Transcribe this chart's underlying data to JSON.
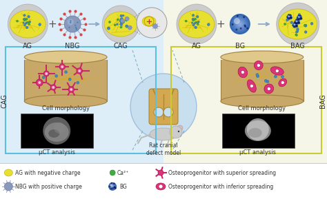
{
  "left_bg": "#ddeef8",
  "right_bg": "#f5f5e8",
  "overall_bg": "#f0f0f0",
  "cag_box_color": "#5bbfdf",
  "bag_box_color": "#c8cc30",
  "label_fontsize": 7,
  "legend_fontsize": 5.5,
  "left_labels": [
    "AG",
    "NBG",
    "CAG"
  ],
  "right_labels": [
    "AG",
    "BG",
    "BAG"
  ],
  "left_side_label": "CAG",
  "right_side_label": "BAG",
  "cell_morph_label": "Cell morphology",
  "uct_label": "μCT analysis",
  "center_label": "Rat cranial\ndefect model",
  "legend_items": [
    "AG with negative charge",
    "NBG with positive charge",
    "Ca²⁺",
    "BG",
    "Osteoprogenitor with superior spreading",
    "Osteoprogenitor with inferior spreading"
  ],
  "arrow_color": "#8aaacc",
  "dashed_color": "#7aaabb",
  "ag_yellow": "#e8e030",
  "ag_edge": "#c0b818",
  "ag_dot_color": "#3388cc",
  "scaffold_top": "#e0c88a",
  "scaffold_body": "#c8a868",
  "scaffold_inner_bg": "#b8e0f0"
}
